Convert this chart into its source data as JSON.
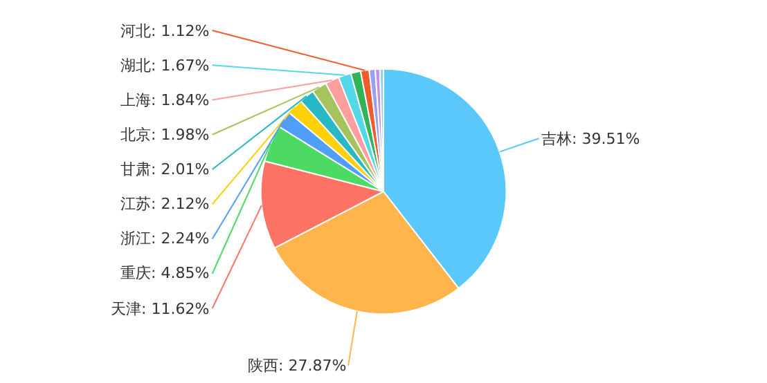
{
  "chart_data": {
    "type": "pie",
    "categories": [
      "吉林: 39.51%",
      "陕西: 27.87%",
      "天津: 11.62%",
      "重庆: 4.85%",
      "浙江: 2.24%",
      "江苏: 2.12%",
      "甘肃: 2.01%",
      "北京: 1.98%",
      "上海: 1.84%",
      "湖北: 1.67%",
      null,
      "河北: 1.12%",
      null,
      null,
      null
    ],
    "values": [
      39.51,
      27.87,
      11.62,
      4.85,
      2.24,
      2.12,
      2.01,
      1.98,
      1.84,
      1.67,
      1.3,
      1.12,
      0.8,
      0.6,
      0.47
    ],
    "colors": [
      "#5ac8fa",
      "#ffb54c",
      "#ff7366",
      "#4cd964",
      "#4f9ef8",
      "#ffd10a",
      "#27b8c4",
      "#a7c35e",
      "#ff9e9e",
      "#54d8e8",
      "#32b35a",
      "#f05a2c",
      "#9aa0f0",
      "#c58cf0",
      "#8ad4f0"
    ],
    "legend": false
  }
}
